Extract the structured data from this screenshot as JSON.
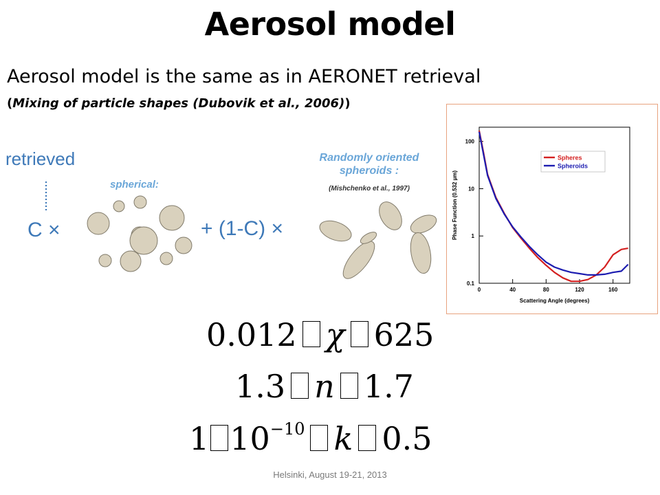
{
  "title": "Aerosol model",
  "subtitle": "Aerosol model is the same as in AERONET retrieval",
  "citation": {
    "open": "(",
    "text": "Mixing of particle shapes (Dubovik et al., 2006)",
    "close": ")"
  },
  "diagram": {
    "retrieved": "retrieved",
    "c_times": "C ×",
    "one_minus_c_times": "+ (1-C) ×",
    "spherical_label": "spherical:",
    "spheroids_label_1": "Randomly oriented",
    "spheroids_label_2": "spheroids :",
    "spheroids_citation": "(Mishchenko et al., 1997)"
  },
  "equations": {
    "eq1": {
      "left": "0.012",
      "var": "χ",
      "right": "625"
    },
    "eq2": {
      "left": "1.3",
      "var": "n",
      "right": "1.7"
    },
    "eq3": {
      "left_a": "1",
      "left_b": "10",
      "exp": "−10",
      "var": "k",
      "right": "0.5"
    }
  },
  "footer": "Helsinki, August 19-21, 2013",
  "chart_data": {
    "type": "line",
    "title": "",
    "xlabel": "Scattering Angle (degrees)",
    "ylabel": "Phase Function (0.532 µm)",
    "xlim": [
      0,
      180
    ],
    "ylim": [
      0.1,
      200
    ],
    "yscale": "log",
    "x_ticks": [
      "0",
      "40",
      "80",
      "120",
      "160"
    ],
    "y_ticks": [
      "100",
      "10",
      "1",
      "0.1"
    ],
    "legend_position": "top-right",
    "series": [
      {
        "name": "Spheres",
        "color": "#d42020",
        "x": [
          0,
          5,
          10,
          20,
          30,
          40,
          50,
          60,
          70,
          80,
          90,
          100,
          110,
          120,
          130,
          140,
          150,
          160,
          170,
          178
        ],
        "y": [
          170,
          60,
          20,
          6.5,
          3.0,
          1.5,
          0.9,
          0.55,
          0.35,
          0.24,
          0.17,
          0.13,
          0.11,
          0.11,
          0.12,
          0.15,
          0.22,
          0.4,
          0.52,
          0.55
        ]
      },
      {
        "name": "Spheroids",
        "color": "#1c1cb0",
        "x": [
          0,
          5,
          10,
          20,
          30,
          40,
          50,
          60,
          70,
          80,
          90,
          100,
          110,
          120,
          130,
          140,
          150,
          160,
          170,
          178
        ],
        "y": [
          160,
          55,
          19,
          6.2,
          2.9,
          1.55,
          0.95,
          0.6,
          0.4,
          0.28,
          0.22,
          0.19,
          0.17,
          0.16,
          0.15,
          0.15,
          0.155,
          0.17,
          0.18,
          0.25
        ]
      }
    ]
  }
}
